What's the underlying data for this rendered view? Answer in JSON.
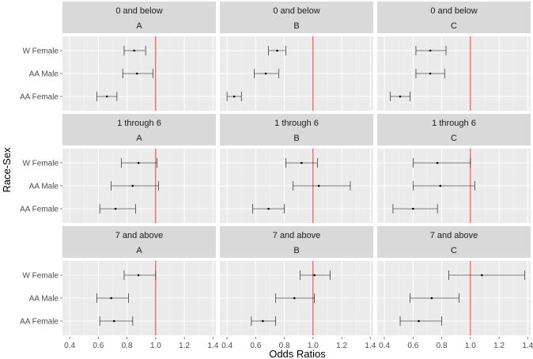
{
  "chart_data": {
    "type": "forest",
    "xlabel": "Odds Ratios",
    "ylabel": "Race-Sex",
    "xlim": [
      0.35,
      1.42
    ],
    "xticks": [
      0.4,
      0.6,
      0.8,
      1.0,
      1.2,
      1.4
    ],
    "xtick_labels": [
      "0.4",
      "0.6",
      "0.8",
      "1.0",
      "1.2",
      "1.4"
    ],
    "reference_line": 1.0,
    "reference_color": "#ff0000",
    "categories": [
      "W Female",
      "AA Male",
      "AA Female"
    ],
    "row_facets": [
      "0 and below",
      "1 through 6",
      "7 and above"
    ],
    "col_facets": [
      "A",
      "B",
      "C"
    ],
    "panels": [
      {
        "row": "0 and below",
        "col": "A",
        "points": [
          {
            "group": "W Female",
            "or": 0.85,
            "lo": 0.78,
            "hi": 0.93
          },
          {
            "group": "AA Male",
            "or": 0.87,
            "lo": 0.77,
            "hi": 0.98
          },
          {
            "group": "AA Female",
            "or": 0.66,
            "lo": 0.59,
            "hi": 0.73
          }
        ]
      },
      {
        "row": "0 and below",
        "col": "B",
        "points": [
          {
            "group": "W Female",
            "or": 0.75,
            "lo": 0.69,
            "hi": 0.81
          },
          {
            "group": "AA Male",
            "or": 0.67,
            "lo": 0.59,
            "hi": 0.76
          },
          {
            "group": "AA Female",
            "or": 0.45,
            "lo": 0.4,
            "hi": 0.5
          }
        ]
      },
      {
        "row": "0 and below",
        "col": "C",
        "points": [
          {
            "group": "W Female",
            "or": 0.72,
            "lo": 0.62,
            "hi": 0.83
          },
          {
            "group": "AA Male",
            "or": 0.72,
            "lo": 0.62,
            "hi": 0.82
          },
          {
            "group": "AA Female",
            "or": 0.51,
            "lo": 0.44,
            "hi": 0.58
          }
        ]
      },
      {
        "row": "1 through 6",
        "col": "A",
        "points": [
          {
            "group": "W Female",
            "or": 0.88,
            "lo": 0.76,
            "hi": 1.01
          },
          {
            "group": "AA Male",
            "or": 0.84,
            "lo": 0.69,
            "hi": 1.02
          },
          {
            "group": "AA Female",
            "or": 0.72,
            "lo": 0.61,
            "hi": 0.86
          }
        ]
      },
      {
        "row": "1 through 6",
        "col": "B",
        "points": [
          {
            "group": "W Female",
            "or": 0.92,
            "lo": 0.81,
            "hi": 1.03
          },
          {
            "group": "AA Male",
            "or": 1.04,
            "lo": 0.86,
            "hi": 1.26
          },
          {
            "group": "AA Female",
            "or": 0.69,
            "lo": 0.58,
            "hi": 0.8
          }
        ]
      },
      {
        "row": "1 through 6",
        "col": "C",
        "points": [
          {
            "group": "W Female",
            "or": 0.77,
            "lo": 0.6,
            "hi": 1.0
          },
          {
            "group": "AA Male",
            "or": 0.79,
            "lo": 0.6,
            "hi": 1.03
          },
          {
            "group": "AA Female",
            "or": 0.6,
            "lo": 0.46,
            "hi": 0.77
          }
        ]
      },
      {
        "row": "7 and above",
        "col": "A",
        "points": [
          {
            "group": "W Female",
            "or": 0.88,
            "lo": 0.78,
            "hi": 1.0
          },
          {
            "group": "AA Male",
            "or": 0.69,
            "lo": 0.59,
            "hi": 0.81
          },
          {
            "group": "AA Female",
            "or": 0.71,
            "lo": 0.61,
            "hi": 0.84
          }
        ]
      },
      {
        "row": "7 and above",
        "col": "B",
        "points": [
          {
            "group": "W Female",
            "or": 1.01,
            "lo": 0.91,
            "hi": 1.12
          },
          {
            "group": "AA Male",
            "or": 0.87,
            "lo": 0.74,
            "hi": 1.01
          },
          {
            "group": "AA Female",
            "or": 0.65,
            "lo": 0.57,
            "hi": 0.74
          }
        ]
      },
      {
        "row": "7 and above",
        "col": "C",
        "points": [
          {
            "group": "W Female",
            "or": 1.08,
            "lo": 0.85,
            "hi": 1.38
          },
          {
            "group": "AA Male",
            "or": 0.73,
            "lo": 0.58,
            "hi": 0.92
          },
          {
            "group": "AA Female",
            "or": 0.64,
            "lo": 0.51,
            "hi": 0.8
          }
        ]
      }
    ]
  }
}
